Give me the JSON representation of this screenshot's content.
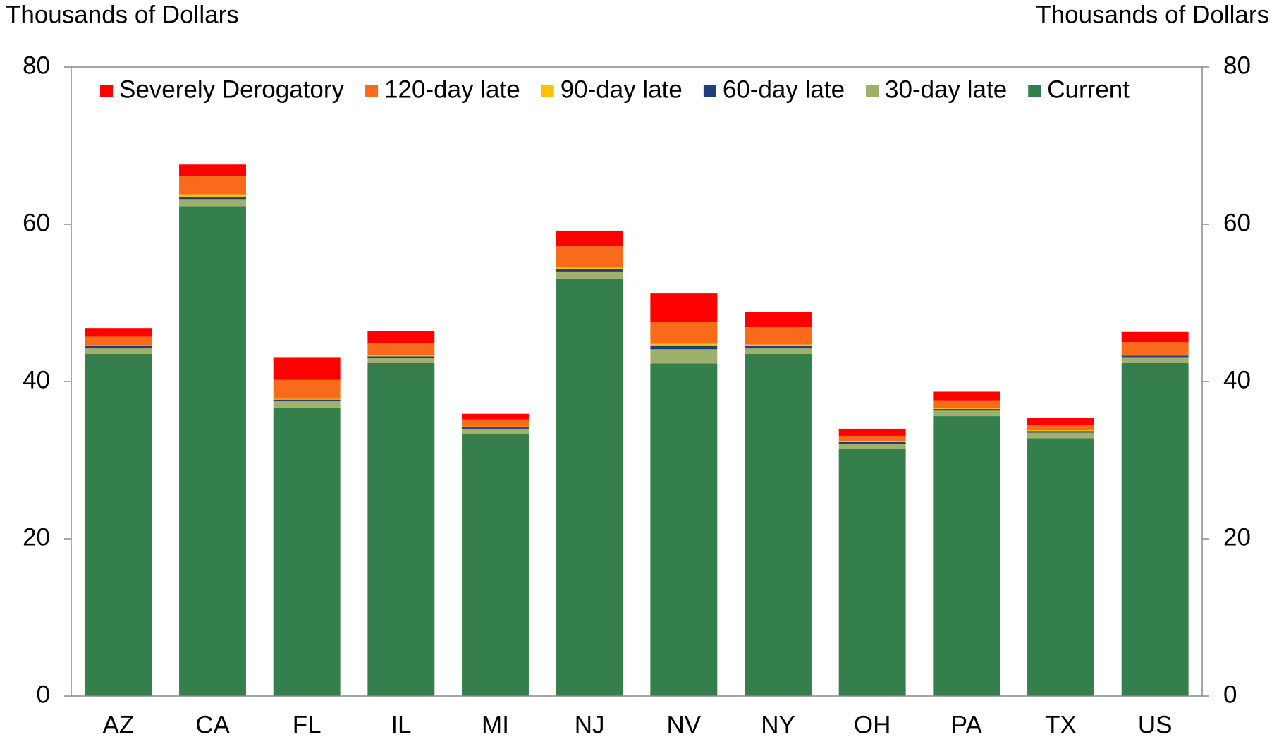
{
  "chart_data": {
    "type": "stacked_bar",
    "y_label": "Thousands of Dollars",
    "y2_label": "Thousands of Dollars",
    "categories": [
      "AZ",
      "CA",
      "FL",
      "IL",
      "MI",
      "NJ",
      "NV",
      "NY",
      "OH",
      "PA",
      "TX",
      "US"
    ],
    "series": [
      {
        "name": "Severely Derogatory",
        "color": "#ff0000",
        "values": [
          1.1,
          1.5,
          2.9,
          1.5,
          0.7,
          2.0,
          3.6,
          1.9,
          0.9,
          1.1,
          0.9,
          1.3
        ]
      },
      {
        "name": "120-day late",
        "color": "#f96b1b",
        "values": [
          1.1,
          2.3,
          2.4,
          1.6,
          0.9,
          2.7,
          2.8,
          2.2,
          0.7,
          1.0,
          0.7,
          1.6
        ]
      },
      {
        "name": "90-day late",
        "color": "#ffc000",
        "values": [
          0.1,
          0.3,
          0.1,
          0.1,
          0.1,
          0.2,
          0.2,
          0.2,
          0.1,
          0.1,
          0.1,
          0.1
        ]
      },
      {
        "name": "60-day late",
        "color": "#1f3f7a",
        "values": [
          0.3,
          0.3,
          0.2,
          0.2,
          0.2,
          0.3,
          0.5,
          0.3,
          0.2,
          0.2,
          0.2,
          0.2
        ]
      },
      {
        "name": "30-day late",
        "color": "#9fb06a",
        "values": [
          0.7,
          0.9,
          0.8,
          0.6,
          0.7,
          0.9,
          1.8,
          0.7,
          0.7,
          0.7,
          0.7,
          0.7
        ]
      },
      {
        "name": "Current",
        "color": "#347f4c",
        "values": [
          43.5,
          62.3,
          36.7,
          42.4,
          33.3,
          53.1,
          42.3,
          43.5,
          31.4,
          35.6,
          32.8,
          42.4
        ]
      }
    ],
    "ylim": [
      0,
      80
    ],
    "yticks": [
      0,
      20,
      40,
      60,
      80
    ],
    "y2lim": [
      0,
      80
    ],
    "y2ticks": [
      0,
      20,
      40,
      60,
      80
    ],
    "grid": false,
    "legend": "top"
  }
}
